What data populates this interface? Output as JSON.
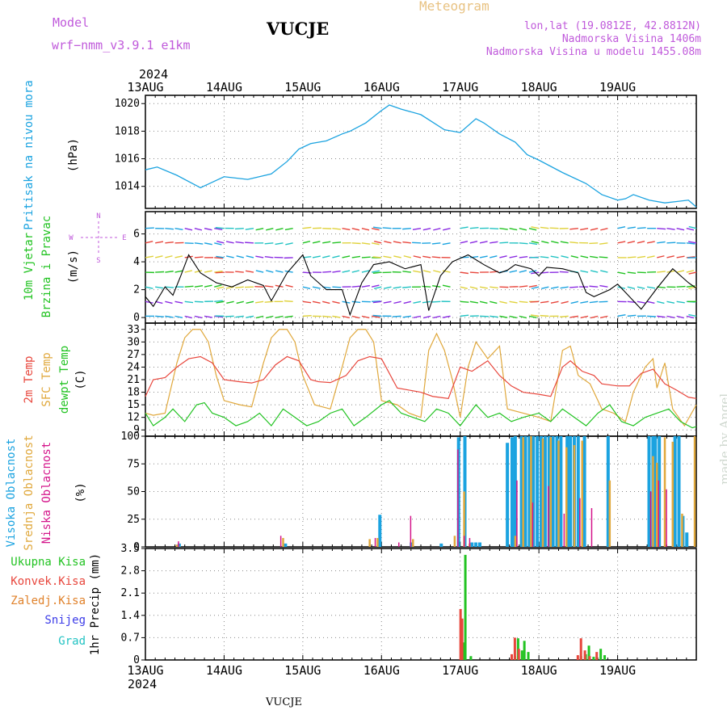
{
  "header": {
    "model_label": "Model",
    "model_name": "wrf−nmm_v3.9.1  e1km",
    "title": "VUCJE",
    "meteogram_label": "Meteogram",
    "coords": "lon,lat (19.0812E, 42.8812N)",
    "altitude": "Nadmorska Visina 1406m",
    "model_altitude": "Nadmorska Visina u modelu 1455.08m",
    "year_top": "2024",
    "year_bottom": "2024",
    "footer": "VUCJE",
    "watermark": "made by Angel"
  },
  "colors": {
    "pressure": "#1ba3e0",
    "temp2m": "#e8463c",
    "sfc": "#e0a83c",
    "dewpt": "#22c322",
    "high": "#1ba3e0",
    "mid": "#e0a83c",
    "low": "#d4148a",
    "total": "#22c322",
    "conv": "#e8463c",
    "snowfall": "#e0812a",
    "snow": "#3c3ce8",
    "hail": "#22c3c3",
    "label_purple": "#c05adb"
  },
  "chart_data": [
    {
      "type": "line",
      "panel": "pressure",
      "ylabel_colored": "Pritisak na nivou mora",
      "unit": "(hPa)",
      "x_ticks": [
        "13AUG",
        "14AUG",
        "15AUG",
        "16AUG",
        "17AUG",
        "18AUG",
        "19AUG"
      ],
      "ylim": [
        1012.4,
        1020.6
      ],
      "yticks": [
        1014,
        1016,
        1018,
        1020
      ],
      "grid": true,
      "series": [
        {
          "name": "Pritisak na nivou mora",
          "x": [
            0,
            0.15,
            0.4,
            0.7,
            1,
            1.3,
            1.6,
            1.8,
            1.95,
            2.1,
            2.3,
            2.5,
            2.6,
            2.8,
            3,
            3.1,
            3.25,
            3.5,
            3.8,
            4,
            4.2,
            4.3,
            4.5,
            4.7,
            4.85,
            5,
            5.3,
            5.6,
            5.8,
            6,
            6.1,
            6.2,
            6.4,
            6.6,
            6.75,
            6.9,
            7.0
          ],
          "y": [
            1015.2,
            1015.4,
            1014.8,
            1013.9,
            1014.7,
            1014.5,
            1014.9,
            1015.8,
            1016.7,
            1017.1,
            1017.3,
            1017.8,
            1018.0,
            1018.6,
            1019.5,
            1019.9,
            1019.6,
            1019.2,
            1018.1,
            1017.9,
            1018.9,
            1018.6,
            1017.8,
            1017.2,
            1016.3,
            1015.9,
            1015.0,
            1014.2,
            1013.4,
            1013.0,
            1013.1,
            1013.4,
            1013.0,
            1012.8,
            1012.9,
            1013.0,
            1012.5
          ]
        }
      ]
    },
    {
      "type": "line",
      "panel": "wind",
      "ylabel_colored": [
        "10m Vjetar",
        "Brzina i Pravac"
      ],
      "unit": "(m/s)",
      "compass": [
        "N",
        "W",
        "E",
        "S"
      ],
      "ylim": [
        -0.4,
        7.6
      ],
      "yticks": [
        0,
        2,
        4,
        6
      ],
      "grid": true,
      "series": [
        {
          "name": "Brzina",
          "x": [
            0,
            0.1,
            0.25,
            0.35,
            0.45,
            0.55,
            0.7,
            0.9,
            1.1,
            1.3,
            1.5,
            1.6,
            1.8,
            2,
            2.1,
            2.3,
            2.5,
            2.6,
            2.75,
            2.9,
            3.1,
            3.3,
            3.5,
            3.6,
            3.75,
            3.9,
            4.1,
            4.3,
            4.5,
            4.6,
            4.7,
            4.9,
            5.0,
            5.1,
            5.3,
            5.5,
            5.6,
            5.7,
            5.9,
            6.0,
            6.1,
            6.3,
            6.5,
            6.7,
            6.9,
            7.0
          ],
          "y": [
            1.5,
            0.8,
            2.2,
            1.6,
            3.0,
            4.5,
            3.2,
            2.5,
            2.2,
            2.7,
            2.3,
            1.2,
            3.2,
            4.5,
            3.0,
            2.0,
            2.0,
            0.2,
            2.5,
            3.8,
            4.0,
            3.5,
            3.8,
            0.5,
            3.0,
            4.0,
            4.5,
            3.8,
            3.2,
            3.4,
            3.8,
            3.5,
            3.0,
            3.6,
            3.5,
            3.2,
            1.8,
            1.5,
            2.0,
            2.4,
            1.8,
            0.6,
            2.1,
            3.5,
            2.5,
            2.1
          ]
        }
      ]
    },
    {
      "type": "line",
      "panel": "temperature",
      "ylabel_colored": [
        "2m Temp",
        "SFC Temp",
        "dewpt Temp"
      ],
      "unit": "(C)",
      "ylim": [
        7.5,
        34.5
      ],
      "yticks": [
        9,
        12,
        15,
        18,
        21,
        24,
        27,
        30,
        33
      ],
      "grid": true,
      "series": [
        {
          "name": "2m Temp",
          "x": [
            0,
            0.1,
            0.25,
            0.4,
            0.55,
            0.7,
            0.85,
            1,
            1.2,
            1.35,
            1.5,
            1.65,
            1.8,
            1.95,
            2.1,
            2.2,
            2.35,
            2.55,
            2.7,
            2.85,
            3,
            3.2,
            3.35,
            3.5,
            3.65,
            3.85,
            4,
            4.15,
            4.35,
            4.5,
            4.65,
            4.8,
            5,
            5.15,
            5.3,
            5.4,
            5.55,
            5.7,
            5.8,
            6,
            6.15,
            6.3,
            6.45,
            6.6,
            6.75,
            6.9,
            7.0
          ],
          "y": [
            17,
            21,
            21.5,
            24,
            26,
            26.5,
            25,
            21,
            20.5,
            20.2,
            21,
            24.5,
            26.5,
            25.5,
            21,
            20.5,
            20.3,
            22,
            25.5,
            26.5,
            26,
            19,
            18.5,
            18,
            17,
            16.5,
            24,
            23,
            25.5,
            22,
            19.5,
            18,
            17.5,
            17,
            24,
            25.5,
            23,
            22,
            20,
            19.5,
            19.5,
            22.5,
            23.5,
            20,
            18.5,
            16.8,
            16.5
          ]
        },
        {
          "name": "SFC Temp",
          "x": [
            0,
            0.1,
            0.25,
            0.4,
            0.5,
            0.6,
            0.7,
            0.8,
            0.9,
            1,
            1.2,
            1.35,
            1.5,
            1.6,
            1.7,
            1.8,
            1.9,
            2,
            2.15,
            2.35,
            2.5,
            2.6,
            2.7,
            2.8,
            2.9,
            3,
            3.2,
            3.35,
            3.5,
            3.6,
            3.7,
            3.8,
            3.9,
            4,
            4.1,
            4.2,
            4.35,
            4.5,
            4.6,
            4.8,
            5,
            5.15,
            5.3,
            5.4,
            5.5,
            5.65,
            5.8,
            5.95,
            6.1,
            6.2,
            6.35,
            6.45,
            6.5,
            6.6,
            6.7,
            6.85,
            7.0
          ],
          "y": [
            13,
            12.5,
            13,
            25,
            31,
            33,
            33,
            30,
            22,
            16,
            15,
            14.5,
            25,
            31,
            33,
            33,
            30,
            22,
            15,
            14,
            24,
            31,
            33,
            33,
            30,
            16,
            15,
            13,
            12,
            28,
            32,
            28,
            21,
            12,
            24,
            30,
            26,
            29,
            14,
            13,
            12,
            11,
            28,
            29,
            22,
            20,
            14,
            13,
            11,
            18,
            24,
            26,
            19,
            25,
            14,
            10,
            15
          ]
        },
        {
          "name": "dewpt Temp",
          "x": [
            0,
            0.1,
            0.25,
            0.35,
            0.5,
            0.65,
            0.75,
            0.85,
            1,
            1.15,
            1.3,
            1.45,
            1.6,
            1.75,
            1.9,
            2.05,
            2.2,
            2.35,
            2.5,
            2.65,
            2.8,
            3,
            3.1,
            3.25,
            3.4,
            3.55,
            3.7,
            3.85,
            4,
            4.2,
            4.35,
            4.5,
            4.65,
            4.8,
            5,
            5.15,
            5.3,
            5.45,
            5.6,
            5.75,
            5.9,
            6.05,
            6.2,
            6.35,
            6.5,
            6.65,
            6.8,
            6.95,
            7.0
          ],
          "y": [
            13,
            10,
            12,
            14,
            11,
            15,
            15.5,
            13,
            12,
            10,
            11,
            13,
            10,
            14,
            12,
            10,
            11,
            13,
            14,
            10,
            12,
            15,
            16,
            13,
            12,
            11,
            14,
            13,
            10,
            15,
            12,
            13,
            11,
            12,
            13,
            11,
            14,
            12,
            10,
            13,
            15,
            11,
            10,
            12,
            13,
            14,
            11,
            9.5,
            9.8
          ]
        }
      ]
    },
    {
      "type": "bar",
      "panel": "cloud",
      "ylabel_colored": [
        "Visoka Oblacnost",
        "Srednja Oblacnost",
        "Niska Oblacnost"
      ],
      "unit": "(%)",
      "ylim": [
        0,
        100
      ],
      "yticks": [
        0,
        25,
        50,
        75,
        100
      ],
      "grid": true,
      "series": [
        {
          "name": "Visoka Oblacnost",
          "x": [
            0.45,
            1.8,
            3.0,
            3.4,
            3.78,
            4.0,
            4.08,
            4.17,
            4.22,
            4.27,
            4.62,
            4.68,
            4.72,
            4.8,
            4.85,
            4.9,
            4.95,
            5.0,
            5.05,
            5.1,
            5.15,
            5.2,
            5.25,
            5.3,
            5.38,
            5.42,
            5.47,
            5.52,
            5.6,
            5.9,
            6.42,
            6.47,
            6.5,
            6.55,
            6.75,
            6.8,
            6.85,
            6.9
          ],
          "y": [
            3,
            3,
            29,
            4,
            3,
            99,
            100,
            4,
            4,
            4,
            94,
            99,
            100,
            100,
            100,
            100,
            100,
            100,
            100,
            100,
            100,
            100,
            100,
            100,
            100,
            100,
            100,
            100,
            100,
            100,
            100,
            100,
            100,
            100,
            100,
            100,
            28,
            13
          ]
        },
        {
          "name": "Srednja Oblacnost",
          "x": [
            0.4,
            1.75,
            2.85,
            2.95,
            3.4,
            3.93,
            4.05,
            4.12,
            4.7,
            4.8,
            4.9,
            5.05,
            5.15,
            5.25,
            5.35,
            5.45,
            5.55,
            5.9,
            6.45,
            6.5,
            6.6,
            6.7,
            6.82,
            6.98
          ],
          "y": [
            2,
            8,
            7,
            8,
            7,
            10,
            50,
            3,
            10,
            99,
            100,
            98,
            99,
            96,
            90,
            92,
            96,
            60,
            82,
            76,
            99,
            95,
            30,
            100
          ]
        },
        {
          "name": "Niska Oblacnost",
          "x": [
            0.4,
            1.7,
            2.9,
            3.2,
            3.35,
            3.95,
            4.03,
            4.1,
            4.7,
            4.9,
            5.1,
            5.3,
            5.5,
            5.65,
            6.4,
            6.5,
            6.6
          ],
          "y": [
            5,
            10,
            8,
            4,
            28,
            88,
            10,
            8,
            60,
            40,
            55,
            30,
            44,
            35,
            50,
            60,
            52
          ]
        }
      ]
    },
    {
      "type": "bar",
      "panel": "precipitation",
      "ylabel_colored": [
        "Ukupna Kisa",
        "Konvek.Kisa",
        "Zaledj.Kisa",
        "Snijeg",
        "Grad"
      ],
      "unit": "1hr Precip (mm)",
      "ylim": [
        0,
        3.5
      ],
      "yticks": [
        0,
        0.7,
        1.4,
        2.1,
        2.8,
        3.5
      ],
      "grid": true,
      "series": [
        {
          "name": "Ukupna Kisa",
          "x": [
            4.03,
            4.05,
            4.12,
            4.68,
            4.72,
            4.77,
            4.8,
            4.85,
            5.52,
            5.58,
            5.62,
            5.68,
            5.72,
            5.77,
            5.82
          ],
          "y": [
            0.55,
            3.3,
            0.12,
            0.12,
            0.68,
            0.3,
            0.6,
            0.25,
            0.12,
            0.18,
            0.45,
            0.1,
            0.08,
            0.35,
            0.15
          ]
        },
        {
          "name": "Konvek.Kisa",
          "x": [
            4.02,
            4.04,
            4.67,
            4.71,
            4.76,
            5.51,
            5.55,
            5.6,
            5.66,
            5.75
          ],
          "y": [
            1.6,
            1.3,
            0.18,
            0.7,
            0.35,
            0.15,
            0.68,
            0.3,
            0.12,
            0.25
          ]
        }
      ]
    }
  ]
}
